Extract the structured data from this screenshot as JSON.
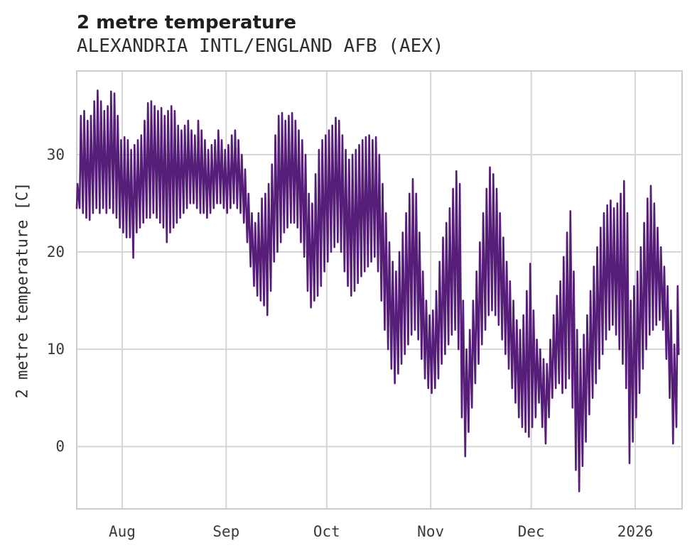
{
  "header": {
    "title": "2 metre temperature",
    "subtitle": "ALEXANDRIA INTL/ENGLAND AFB (AEX)"
  },
  "chart_data": {
    "type": "line",
    "title": "2 metre temperature",
    "subtitle": "ALEXANDRIA INTL/ENGLAND AFB (AEX)",
    "station": "ALEXANDRIA INTL/ENGLAND AFB (AEX)",
    "xlabel": "",
    "ylabel": "2 metre temperature [C]",
    "units": "C",
    "line_color": "#561e78",
    "grid": true,
    "grid_color": "#d6d6d6",
    "frame_color": "#cccccc",
    "text_color": "#3a3a3a",
    "ylim": [
      -6.4,
      38.6
    ],
    "yticks": [
      0,
      10,
      20,
      30
    ],
    "xticks": [
      {
        "label": "Aug",
        "day": 14
      },
      {
        "label": "Sep",
        "day": 45
      },
      {
        "label": "Oct",
        "day": 75
      },
      {
        "label": "Nov",
        "day": 106
      },
      {
        "label": "Dec",
        "day": 136
      },
      {
        "label": "2026",
        "day": 167
      }
    ],
    "start_date": "2025-07-18",
    "end_date": "2026-01-13",
    "sampling": "daily min/max envelope of hourly 2 m temperature",
    "daily_min": [
      24.5,
      24.5,
      24,
      23.5,
      23.3,
      24,
      24.5,
      24,
      24.5,
      24,
      24.5,
      24,
      23.5,
      22.5,
      22,
      21.5,
      21.5,
      19.4,
      22,
      22.5,
      23,
      23.5,
      23.5,
      24,
      23.5,
      23,
      22.5,
      21,
      22,
      22.5,
      23,
      23.5,
      24,
      24.5,
      25,
      25,
      24.5,
      24,
      24,
      23.5,
      24,
      24.5,
      25,
      25,
      24.5,
      24,
      24.5,
      25,
      24.5,
      24,
      23,
      21,
      18.5,
      16.5,
      15.5,
      15,
      14.5,
      13.5,
      16,
      19,
      20,
      21,
      22,
      22.5,
      23,
      23,
      22.5,
      21,
      19.5,
      16,
      14.3,
      15,
      15.5,
      16.5,
      18,
      19,
      20,
      20.5,
      21,
      20,
      18,
      16.5,
      15.5,
      16,
      16.8,
      17.5,
      18,
      18.5,
      19,
      19.5,
      18,
      15,
      12,
      10,
      8,
      6.5,
      7.5,
      8.5,
      9.5,
      10.5,
      11.5,
      12,
      11,
      9,
      7,
      6,
      5.5,
      6,
      7,
      8.5,
      9.5,
      10.5,
      11.5,
      12,
      10,
      3,
      -1,
      1.5,
      4,
      6.5,
      8.5,
      10.5,
      12,
      13.5,
      14,
      13.5,
      12.5,
      11,
      9.5,
      8,
      6,
      4.5,
      3,
      2,
      1.5,
      1,
      2,
      3,
      4.5,
      2,
      0.3,
      3,
      5,
      6,
      6.5,
      5.5,
      6,
      7,
      4,
      -2.4,
      -4.6,
      -2,
      0.5,
      3.3,
      5,
      6.5,
      8,
      9.5,
      11,
      12,
      12.5,
      11.5,
      10,
      8.5,
      6,
      -1.7,
      0.5,
      3,
      5.5,
      8,
      10,
      11.5,
      12,
      12.5,
      13,
      12,
      9,
      5,
      0.3,
      2
    ],
    "daily_max": [
      27,
      34,
      34.5,
      33.5,
      34,
      35.5,
      36.6,
      35.5,
      34.5,
      35,
      36.5,
      36.3,
      34,
      31.5,
      31.8,
      31.5,
      30.5,
      31,
      31.5,
      32,
      33.5,
      35.3,
      35.5,
      35,
      34.5,
      34.8,
      34,
      34.5,
      35,
      34.5,
      33,
      32.5,
      33,
      33.5,
      32.5,
      32,
      33.5,
      32.5,
      31.5,
      30.5,
      31,
      31.5,
      32.5,
      31.5,
      30.5,
      31,
      32,
      32.5,
      31.5,
      30,
      28.5,
      26,
      24,
      23,
      24,
      25.5,
      26,
      27,
      29,
      32,
      34,
      34.3,
      33.5,
      34,
      34.3,
      33.5,
      32.5,
      31.5,
      30,
      26,
      25,
      28,
      30.5,
      31.5,
      32,
      32.5,
      33,
      33.8,
      33.5,
      32,
      30.5,
      29.5,
      30,
      30.5,
      31,
      31.5,
      31.8,
      32,
      31.5,
      31.8,
      30,
      27,
      24,
      21,
      19,
      18,
      20,
      22,
      24,
      26,
      27.5,
      26,
      22,
      18,
      15,
      13.5,
      14,
      16,
      19,
      21.5,
      23,
      24.5,
      26.5,
      28.3,
      27,
      15,
      10,
      12,
      15,
      18,
      21,
      24,
      26.5,
      28.7,
      28,
      26.5,
      24,
      21.5,
      19,
      17,
      15,
      13,
      12,
      13.5,
      16,
      18.8,
      14,
      11,
      10,
      9,
      8.5,
      11,
      13.5,
      15.5,
      17,
      19.5,
      22,
      24.2,
      18,
      12,
      10,
      11.5,
      13.5,
      16,
      18.5,
      20.5,
      22.5,
      24,
      24.8,
      25.3,
      24.5,
      25,
      26,
      27.3,
      24,
      15,
      16.5,
      18,
      20.5,
      23,
      25.5,
      26.8,
      25,
      22.5,
      20.5,
      18.5,
      16.5,
      14,
      10.5,
      16.5
    ],
    "end_value": 9.5
  }
}
